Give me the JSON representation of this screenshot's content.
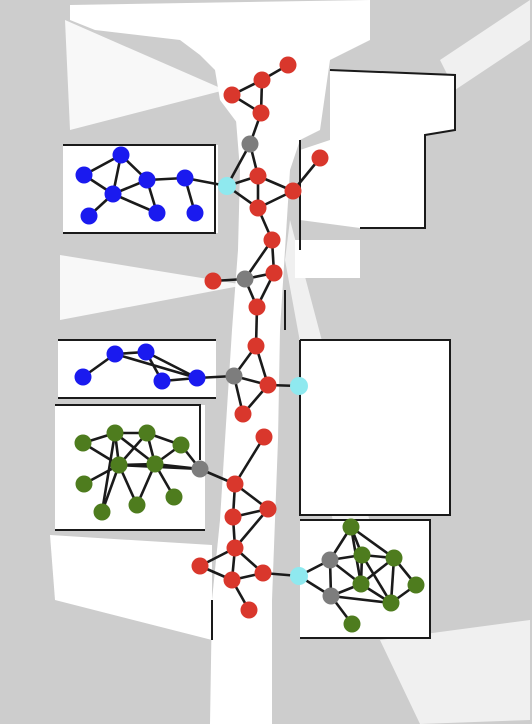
{
  "colors": {
    "background": "#cdcdcd",
    "free_space": "#ffffff",
    "walls": "#1a1a1a",
    "edge": "#1a1a1a",
    "corridor": "#d9372c",
    "room_blue": "#1a1aef",
    "room_green": "#4e7c1e",
    "junction": "#7d7d7d",
    "doorway": "#8fe9ef"
  }
}
